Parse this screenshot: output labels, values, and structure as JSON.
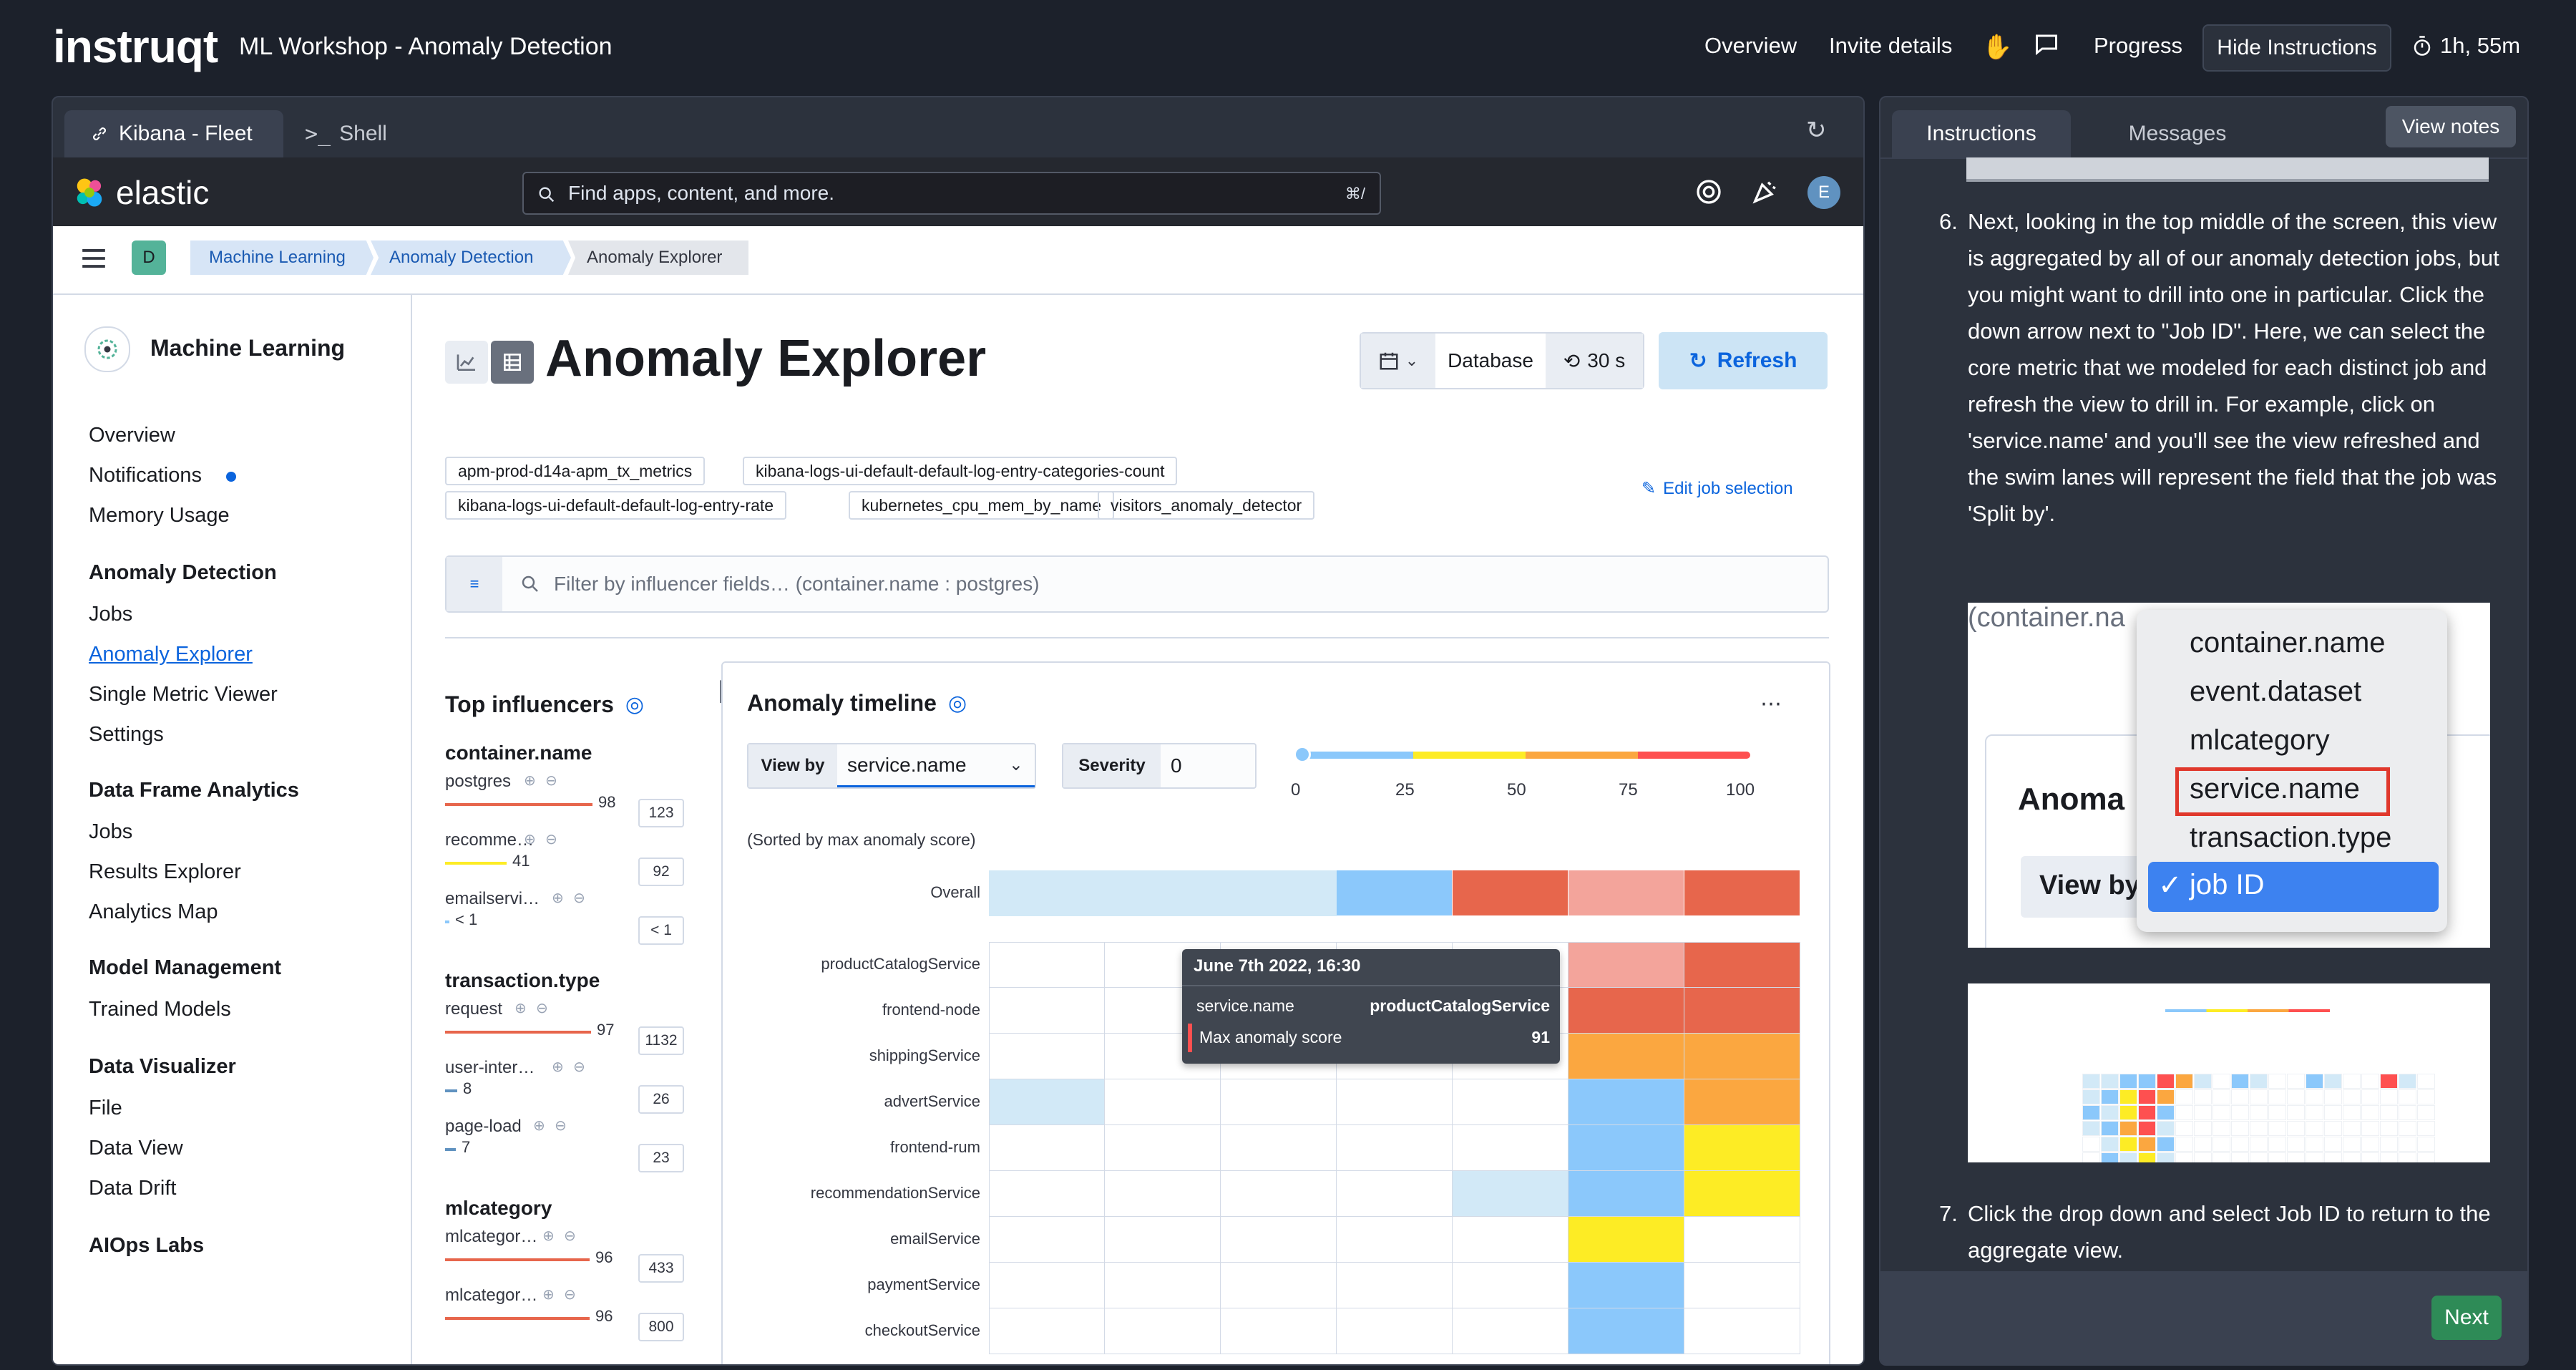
{
  "topbar": {
    "logo": "instruqt",
    "workshop_title": "ML Workshop - Anomaly Detection",
    "nav": [
      "Overview",
      "Invite details",
      "Progress"
    ],
    "hide_instructions": "Hide Instructions",
    "timer": "1h, 55m"
  },
  "left_tabs": {
    "fleet": "Kibana - Fleet",
    "shell": "Shell"
  },
  "kibana": {
    "brand": "elastic",
    "search_placeholder": "Find apps, content, and more.",
    "search_shortcut": "⌘/",
    "avatar": "E",
    "space_badge": "D",
    "breadcrumbs": [
      "Machine Learning",
      "Anomaly Detection",
      "Anomaly Explorer"
    ],
    "sidebar": {
      "title": "Machine Learning",
      "top_items": [
        "Overview",
        "Notifications",
        "Memory Usage"
      ],
      "sections": [
        {
          "heading": "Anomaly Detection",
          "items": [
            "Jobs",
            "Anomaly Explorer",
            "Single Metric Viewer",
            "Settings"
          ]
        },
        {
          "heading": "Data Frame Analytics",
          "items": [
            "Jobs",
            "Results Explorer",
            "Analytics Map"
          ]
        },
        {
          "heading": "Model Management",
          "items": [
            "Trained Models"
          ]
        },
        {
          "heading": "Data Visualizer",
          "items": [
            "File",
            "Data View",
            "Data Drift"
          ]
        },
        {
          "heading": "AIOps Labs",
          "items": []
        }
      ]
    },
    "page_title": "Anomaly Explorer",
    "toolbar": {
      "datasource": "Database",
      "interval": "30 s",
      "refresh": "Refresh"
    },
    "job_chips": [
      "apm-prod-d14a-apm_tx_metrics",
      "kibana-logs-ui-default-default-log-entry-categories-count",
      "kibana-logs-ui-default-default-log-entry-rate",
      "kubernetes_cpu_mem_by_name",
      "visitors_anomaly_detector"
    ],
    "edit_job_selection": "Edit job selection",
    "filter_placeholder": "Filter by influencer fields… (container.name : postgres)",
    "top_influencers": {
      "title": "Top influencers",
      "groups": [
        {
          "name": "container.name",
          "items": [
            {
              "label": "postgres",
              "score": "98",
              "count": "123",
              "color": "#e7664c"
            },
            {
              "label": "recomme…",
              "score": "41",
              "count": "92",
              "color": "#fdec25"
            },
            {
              "label": "emailservi…",
              "score": "< 1",
              "count": "< 1",
              "color": "#8bc8fb"
            }
          ]
        },
        {
          "name": "transaction.type",
          "items": [
            {
              "label": "request",
              "score": "97",
              "count": "1132",
              "color": "#e7664c"
            },
            {
              "label": "user-inter…",
              "score": "8",
              "count": "26",
              "color": "#6092c0"
            },
            {
              "label": "page-load",
              "score": "7",
              "count": "23",
              "color": "#6092c0"
            }
          ]
        },
        {
          "name": "mlcategory",
          "items": [
            {
              "label": "mlcategor…",
              "score": "96",
              "count": "433",
              "color": "#e7664c"
            },
            {
              "label": "mlcategor…",
              "score": "96",
              "count": "800",
              "color": "#e7664c"
            }
          ]
        }
      ]
    },
    "timeline": {
      "title": "Anomaly timeline",
      "view_by_label": "View by",
      "view_by_value": "service.name",
      "severity_label": "Severity",
      "severity_value": "0",
      "scale_ticks": [
        "0",
        "25",
        "50",
        "75",
        "100"
      ],
      "sort_note": "(Sorted by max anomaly score)",
      "overall_label": "Overall",
      "lanes": [
        "productCatalogService",
        "frontend-node",
        "shippingService",
        "advertService",
        "frontend-rum",
        "recommendationService",
        "emailService",
        "paymentService",
        "checkoutService"
      ],
      "tooltip": {
        "time": "June 7th 2022, 16:30",
        "field": "service.name",
        "value": "productCatalogService",
        "metric": "Max anomaly score",
        "score": "91"
      },
      "colors": {
        "none": "#ffffff",
        "low": "#d2e9f7",
        "minor": "#8bc8fb",
        "warning": "#fdec25",
        "major": "#fba740",
        "critical": "#fe5050"
      }
    }
  },
  "instructions": {
    "tabs": [
      "Instructions",
      "Messages"
    ],
    "view_notes": "View notes",
    "step6_num": "6.",
    "step6": "Next, looking in the top middle of the screen, this view is aggregated by all of our anomaly detection jobs, but you might want to drill into one in particular. Click the down arrow next to \"Job ID\". Here, we can select the core metric that we modeled for each distinct job and refresh the view to drill in. For example, click on 'service.name' and you'll see the view refreshed and the swim lanes will represent the field that the job was 'Split by'.",
    "dropdown_options": [
      "container.name",
      "event.dataset",
      "mlcategory",
      "service.name",
      "transaction.type",
      "job ID"
    ],
    "dropdown_bg_text": "(container.na",
    "dropdown_anomaly": "Anoma",
    "dropdown_viewby": "View by",
    "step7_num": "7.",
    "step7": "Click the drop down and select Job ID to return to the aggregate view.",
    "next": "Next"
  }
}
